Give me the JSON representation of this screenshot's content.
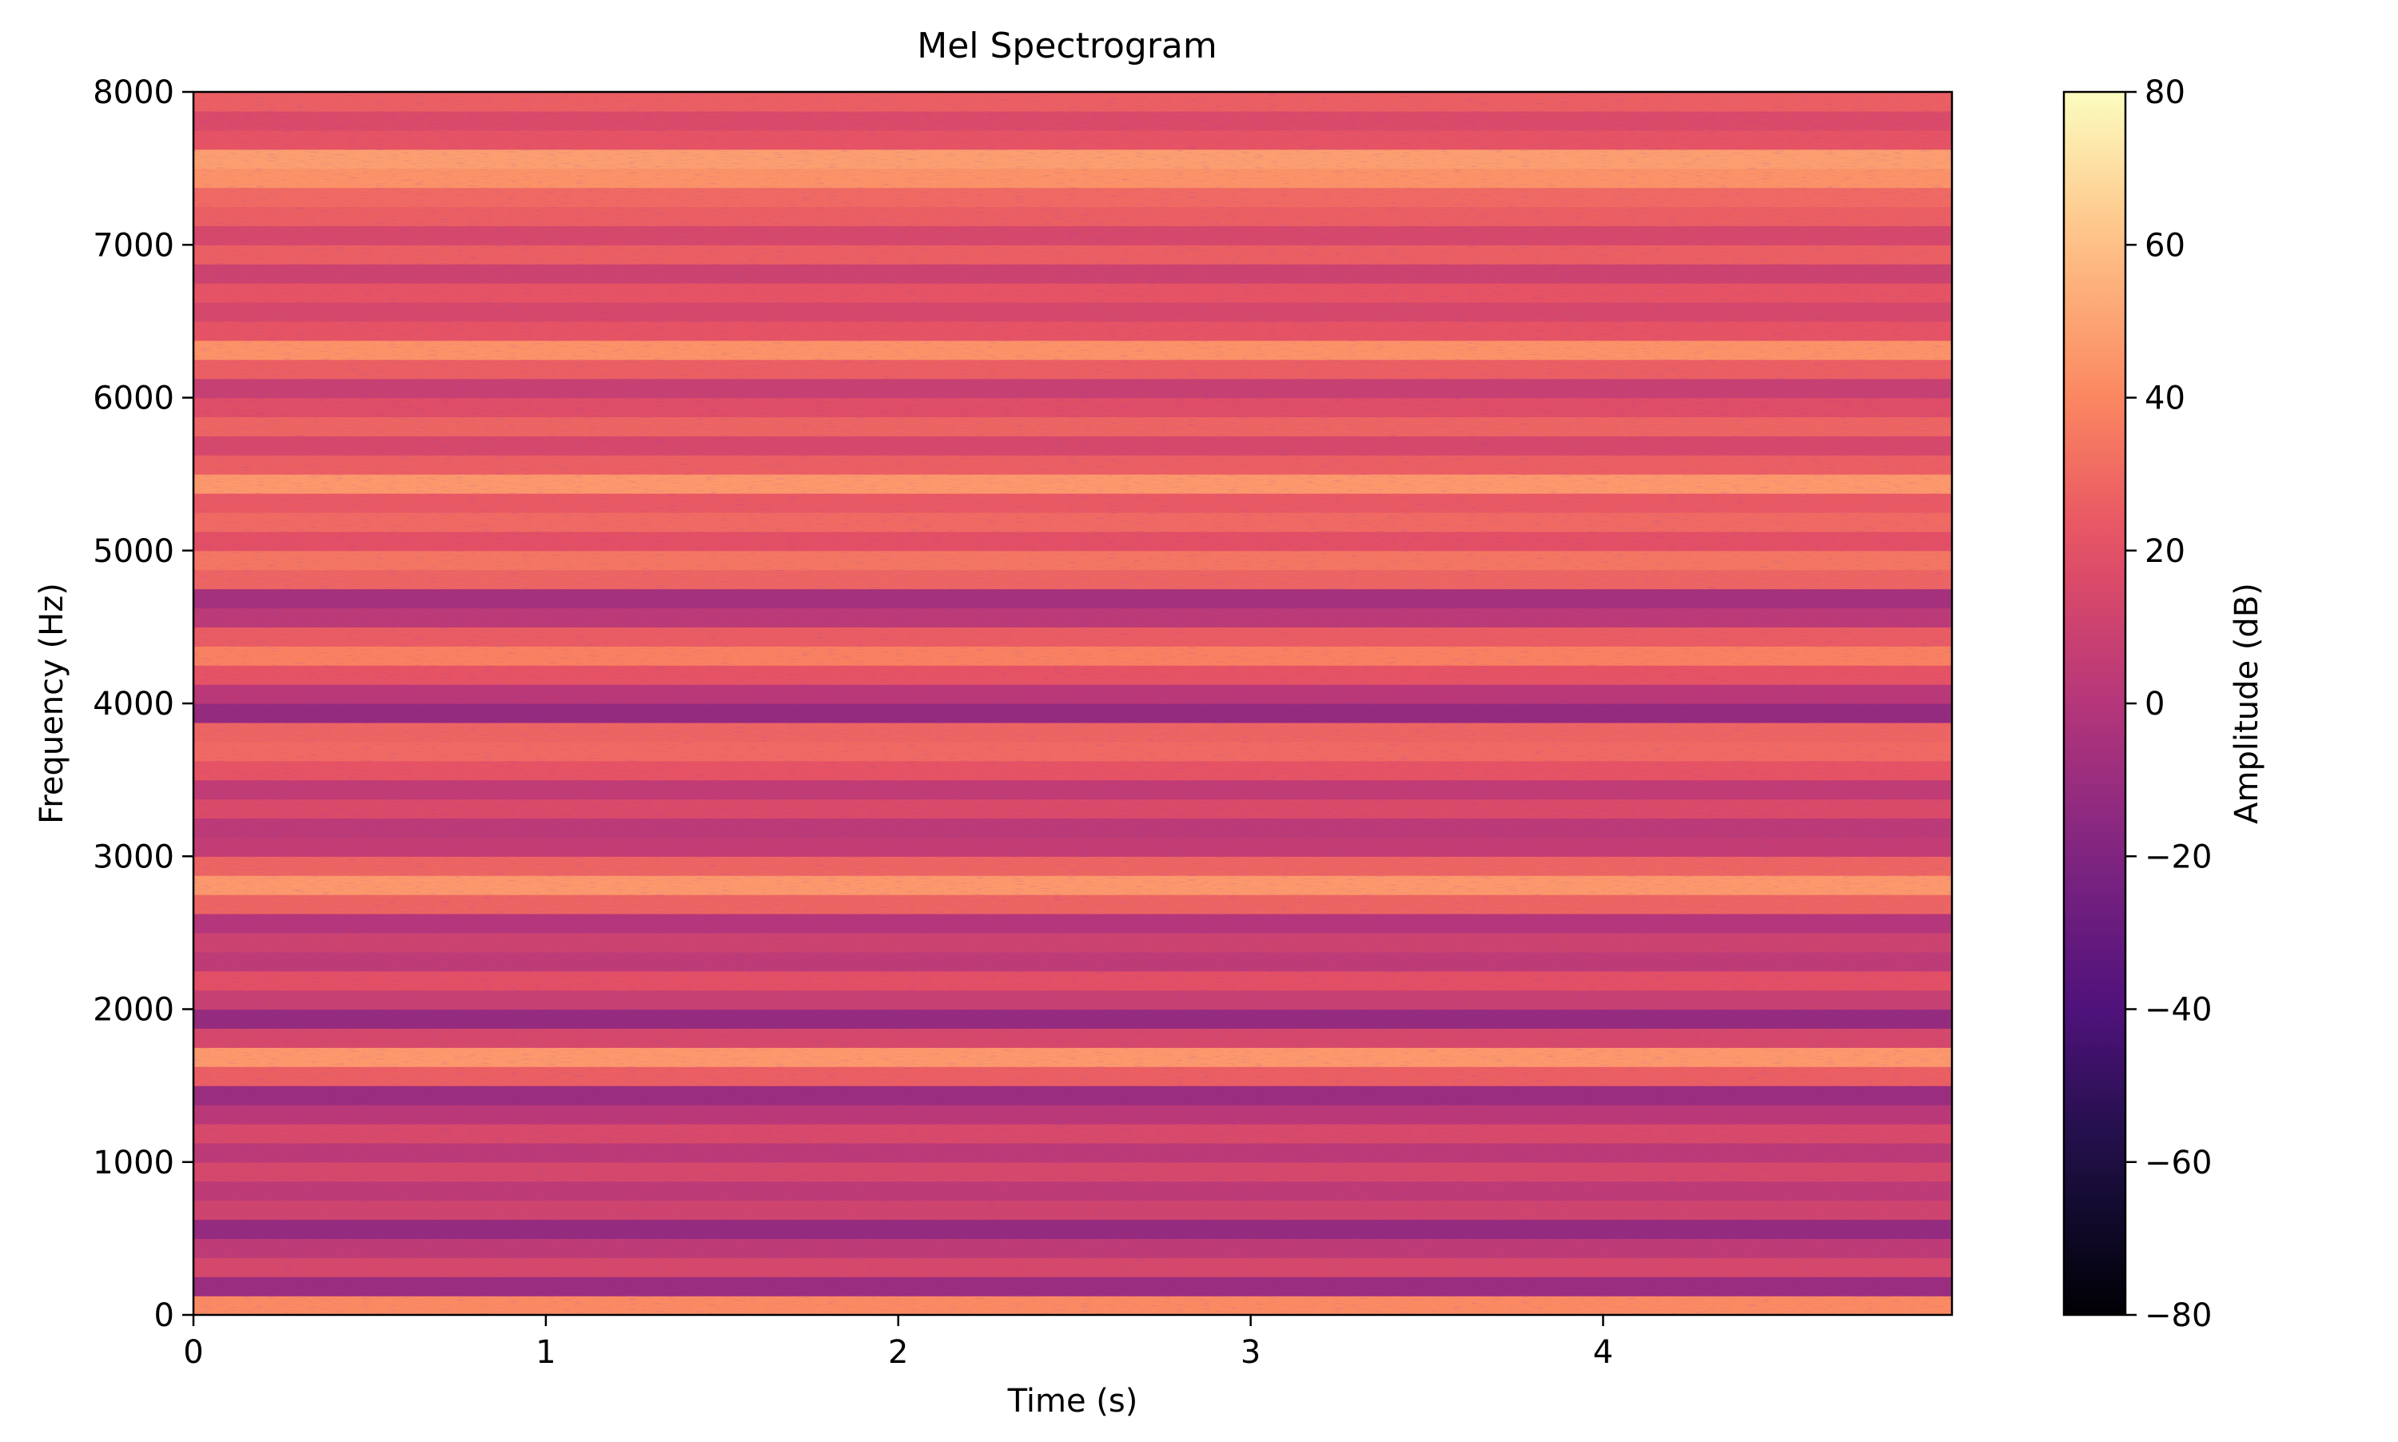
{
  "chart_data": {
    "type": "heatmap",
    "title": "Mel Spectrogram",
    "xlabel": "Time (s)",
    "ylabel": "Frequency (Hz)",
    "xlim": [
      0,
      4.99
    ],
    "ylim": [
      0,
      8000
    ],
    "x_ticks": [
      0,
      1,
      2,
      3,
      4
    ],
    "y_ticks": [
      0,
      1000,
      2000,
      3000,
      4000,
      5000,
      6000,
      7000,
      8000
    ],
    "colormap": "magma",
    "colorbar": {
      "label": "Amplitude (dB)",
      "range": [
        -80,
        80
      ],
      "ticks": [
        "80",
        "60",
        "40",
        "20",
        "0",
        "−20",
        "−40",
        "−60",
        "−80"
      ],
      "tick_values": [
        80,
        60,
        40,
        20,
        0,
        -20,
        -40,
        -60,
        -80
      ]
    },
    "grid": false,
    "frequency_bands_db": [
      {
        "f0": 0,
        "f1": 125,
        "db": 41
      },
      {
        "f0": 125,
        "f1": 250,
        "db": -10
      },
      {
        "f0": 250,
        "f1": 375,
        "db": 14
      },
      {
        "f0": 375,
        "f1": 500,
        "db": 4
      },
      {
        "f0": 500,
        "f1": 625,
        "db": -12
      },
      {
        "f0": 625,
        "f1": 750,
        "db": 11
      },
      {
        "f0": 750,
        "f1": 875,
        "db": 4
      },
      {
        "f0": 875,
        "f1": 1000,
        "db": 14
      },
      {
        "f0": 1000,
        "f1": 1125,
        "db": 3
      },
      {
        "f0": 1125,
        "f1": 1250,
        "db": 15
      },
      {
        "f0": 1250,
        "f1": 1375,
        "db": 2
      },
      {
        "f0": 1375,
        "f1": 1500,
        "db": -10
      },
      {
        "f0": 1500,
        "f1": 1625,
        "db": 26
      },
      {
        "f0": 1625,
        "f1": 1750,
        "db": 46
      },
      {
        "f0": 1750,
        "f1": 1875,
        "db": 14
      },
      {
        "f0": 1875,
        "f1": 2000,
        "db": -12
      },
      {
        "f0": 2000,
        "f1": 2125,
        "db": 8
      },
      {
        "f0": 2125,
        "f1": 2250,
        "db": 20
      },
      {
        "f0": 2250,
        "f1": 2375,
        "db": 4
      },
      {
        "f0": 2375,
        "f1": 2500,
        "db": 10
      },
      {
        "f0": 2500,
        "f1": 2625,
        "db": 0
      },
      {
        "f0": 2625,
        "f1": 2750,
        "db": 28
      },
      {
        "f0": 2750,
        "f1": 2875,
        "db": 46
      },
      {
        "f0": 2875,
        "f1": 3000,
        "db": 28
      },
      {
        "f0": 3000,
        "f1": 3125,
        "db": 6
      },
      {
        "f0": 3125,
        "f1": 3250,
        "db": 3
      },
      {
        "f0": 3250,
        "f1": 3375,
        "db": 16
      },
      {
        "f0": 3375,
        "f1": 3500,
        "db": 5
      },
      {
        "f0": 3500,
        "f1": 3625,
        "db": 22
      },
      {
        "f0": 3625,
        "f1": 3750,
        "db": 30
      },
      {
        "f0": 3750,
        "f1": 3875,
        "db": 28
      },
      {
        "f0": 3875,
        "f1": 4000,
        "db": -12
      },
      {
        "f0": 4000,
        "f1": 4125,
        "db": 2
      },
      {
        "f0": 4125,
        "f1": 4250,
        "db": 22
      },
      {
        "f0": 4250,
        "f1": 4375,
        "db": 38
      },
      {
        "f0": 4375,
        "f1": 4500,
        "db": 25
      },
      {
        "f0": 4500,
        "f1": 4625,
        "db": 3
      },
      {
        "f0": 4625,
        "f1": 4750,
        "db": -6
      },
      {
        "f0": 4750,
        "f1": 4875,
        "db": 28
      },
      {
        "f0": 4875,
        "f1": 5000,
        "db": 34
      },
      {
        "f0": 5000,
        "f1": 5125,
        "db": 20
      },
      {
        "f0": 5125,
        "f1": 5250,
        "db": 30
      },
      {
        "f0": 5250,
        "f1": 5375,
        "db": 24
      },
      {
        "f0": 5375,
        "f1": 5500,
        "db": 46
      },
      {
        "f0": 5500,
        "f1": 5625,
        "db": 26
      },
      {
        "f0": 5625,
        "f1": 5750,
        "db": 14
      },
      {
        "f0": 5750,
        "f1": 5875,
        "db": 28
      },
      {
        "f0": 5875,
        "f1": 6000,
        "db": 18
      },
      {
        "f0": 6000,
        "f1": 6125,
        "db": 8
      },
      {
        "f0": 6125,
        "f1": 6250,
        "db": 26
      },
      {
        "f0": 6250,
        "f1": 6375,
        "db": 44
      },
      {
        "f0": 6375,
        "f1": 6500,
        "db": 22
      },
      {
        "f0": 6500,
        "f1": 6625,
        "db": 14
      },
      {
        "f0": 6625,
        "f1": 6750,
        "db": 22
      },
      {
        "f0": 6750,
        "f1": 6875,
        "db": 10
      },
      {
        "f0": 6875,
        "f1": 7000,
        "db": 26
      },
      {
        "f0": 7000,
        "f1": 7125,
        "db": 14
      },
      {
        "f0": 7125,
        "f1": 7250,
        "db": 26
      },
      {
        "f0": 7250,
        "f1": 7375,
        "db": 30
      },
      {
        "f0": 7375,
        "f1": 7500,
        "db": 44
      },
      {
        "f0": 7500,
        "f1": 7625,
        "db": 48
      },
      {
        "f0": 7625,
        "f1": 7750,
        "db": 22
      },
      {
        "f0": 7750,
        "f1": 7875,
        "db": 16
      },
      {
        "f0": 7875,
        "f1": 8000,
        "db": 26
      }
    ]
  }
}
